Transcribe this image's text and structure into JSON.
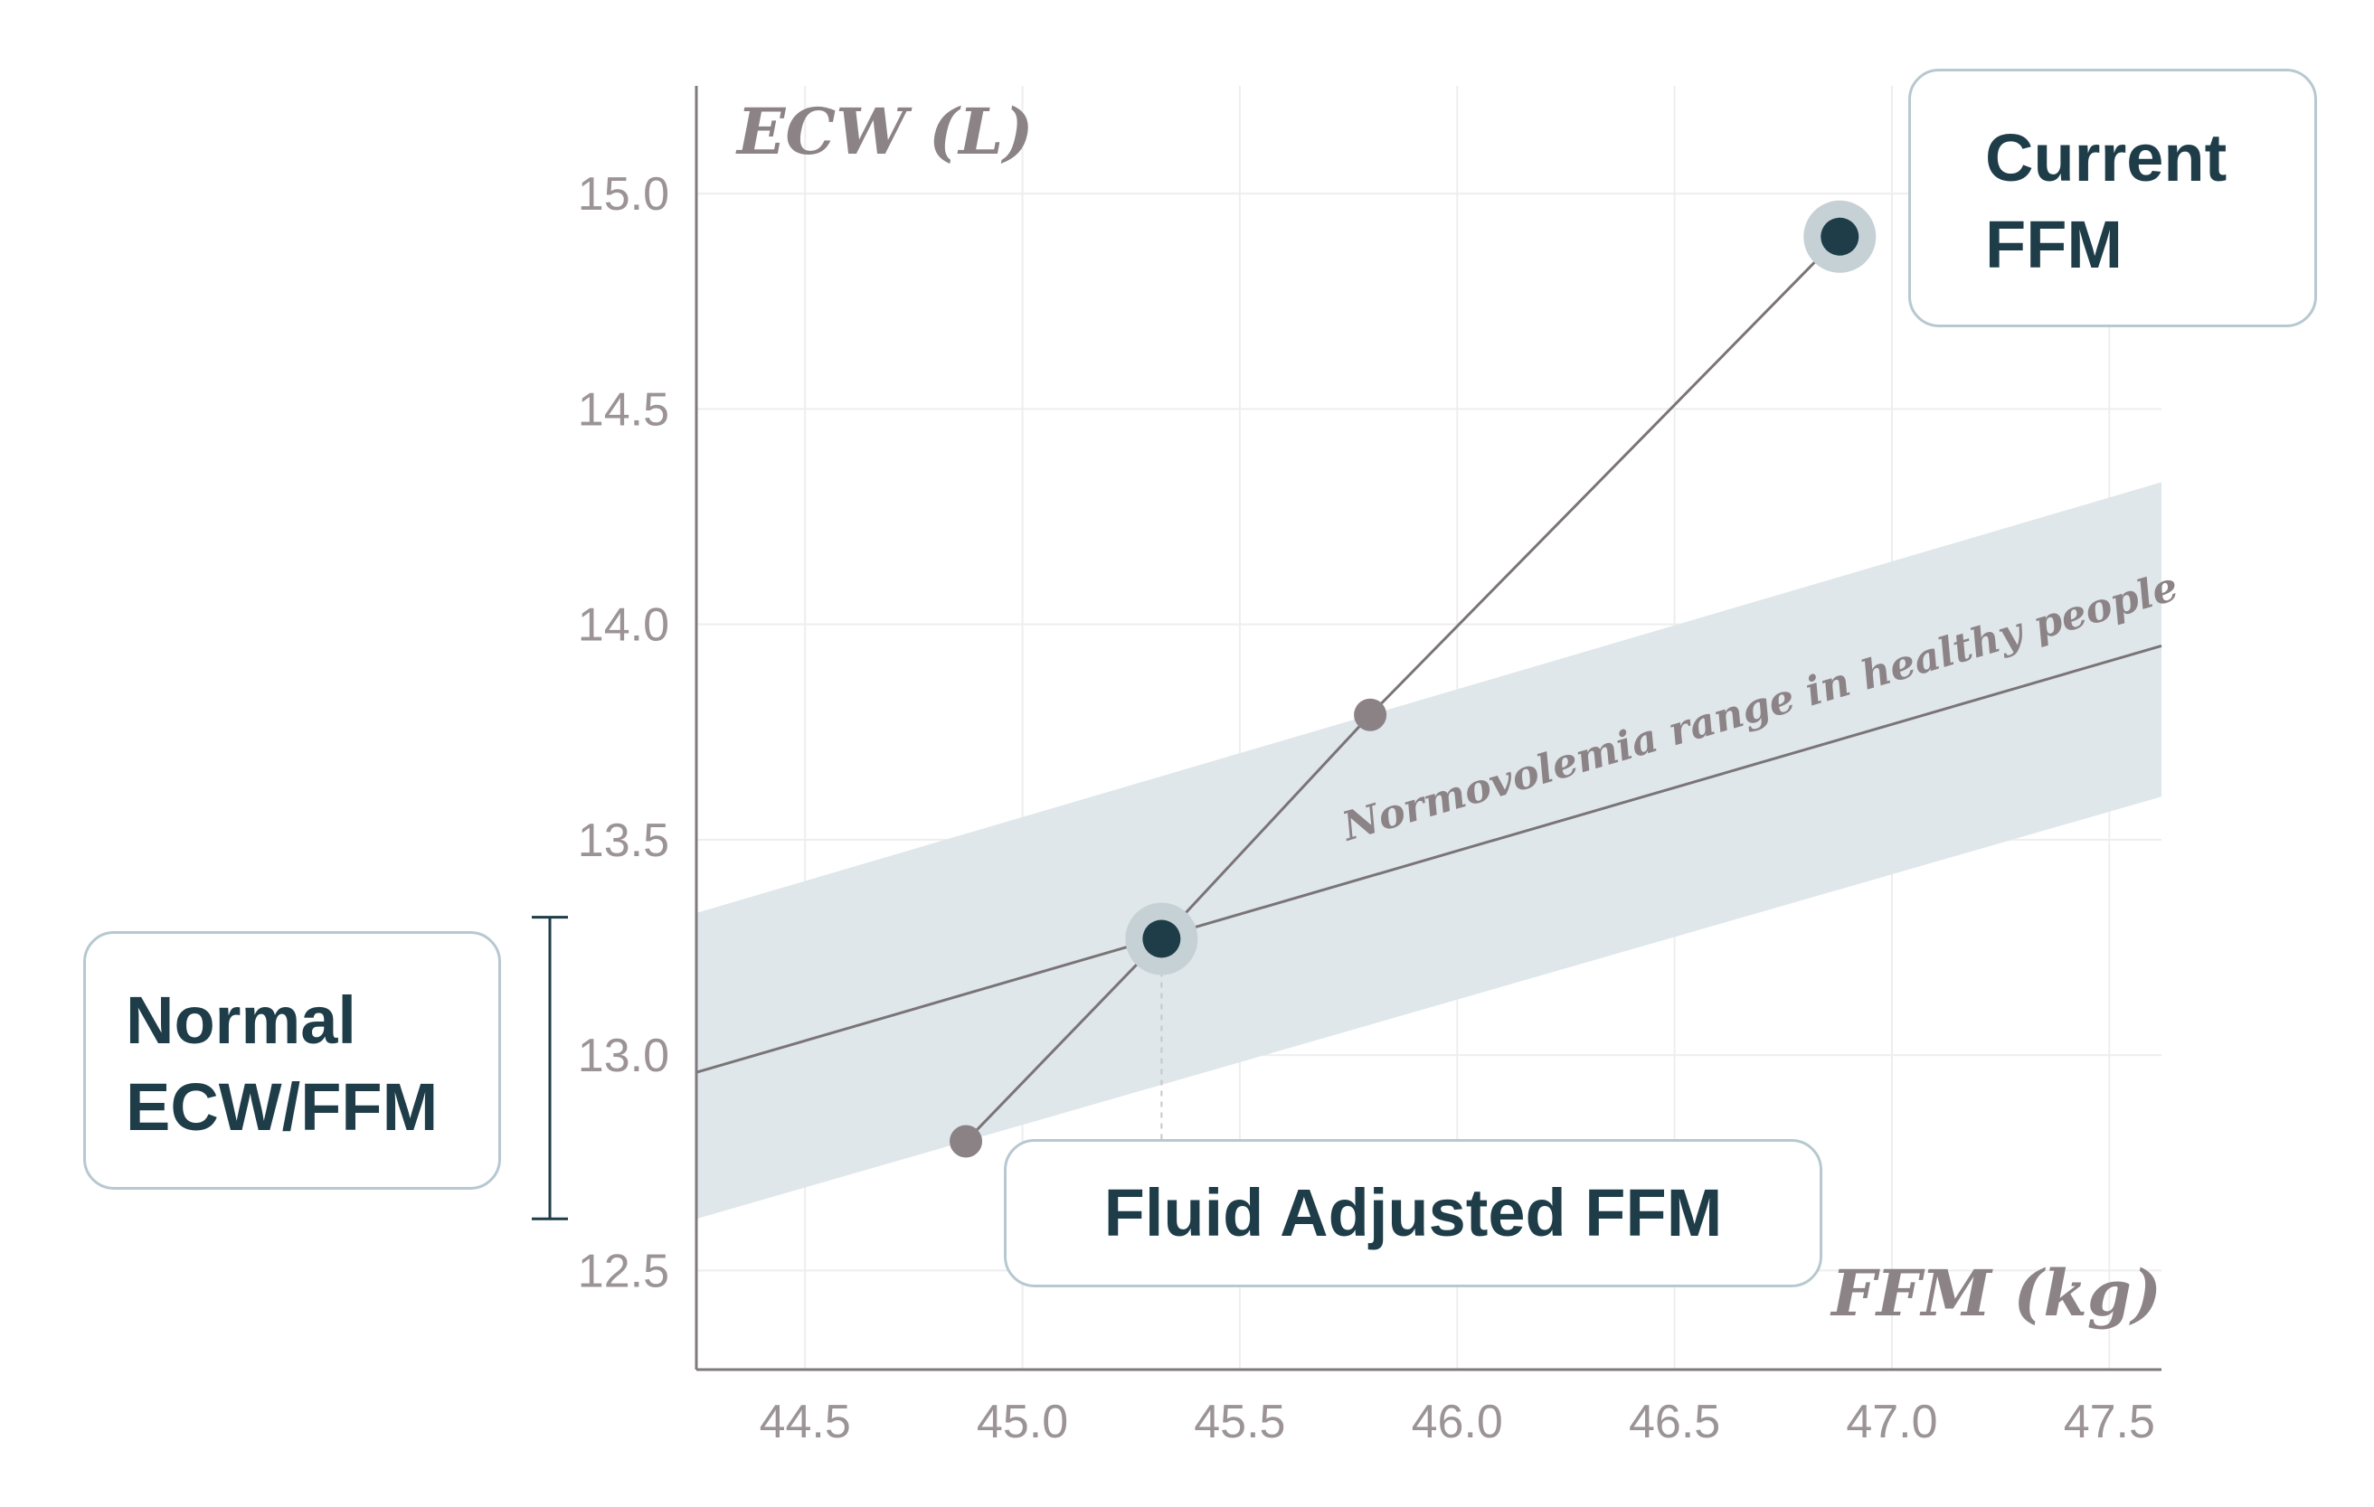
{
  "chart_data": {
    "type": "scatter",
    "xlabel": "FFM (kg)",
    "ylabel": "ECW (L)",
    "xlim": [
      44.25,
      47.62
    ],
    "ylim": [
      12.27,
      15.25
    ],
    "xticks": [
      "44.5",
      "45.0",
      "45.5",
      "46.0",
      "46.5",
      "47.0",
      "47.5"
    ],
    "yticks": [
      "12.5",
      "13.0",
      "13.5",
      "14.0",
      "14.5",
      "15.0"
    ],
    "grid": true,
    "band": {
      "label": "Normovolemia range in healthy people",
      "center_line": [
        [
          44.25,
          12.96
        ],
        [
          47.62,
          13.95
        ]
      ],
      "lower_edge": [
        [
          44.25,
          12.62
        ],
        [
          47.62,
          13.6
        ]
      ],
      "upper_edge": [
        [
          44.25,
          13.33
        ],
        [
          47.62,
          14.33
        ]
      ]
    },
    "path": [
      {
        "x": 44.87,
        "y": 12.8
      },
      {
        "x": 45.32,
        "y": 13.27
      },
      {
        "x": 45.8,
        "y": 13.79
      },
      {
        "x": 46.88,
        "y": 14.9
      }
    ],
    "highlight_points": [
      {
        "x": 45.32,
        "y": 13.27,
        "label": "Fluid Adjusted FFM"
      },
      {
        "x": 46.88,
        "y": 14.9,
        "label": "Current FFM"
      }
    ],
    "normal_range_bracket": {
      "y_from": 12.62,
      "y_to": 13.32,
      "label": "Normal ECW/FFM"
    }
  },
  "callouts": {
    "current": {
      "line1": "Current",
      "line2": "FFM"
    },
    "normal": {
      "line1": "Normal",
      "line2": "ECW/FFM"
    },
    "adjusted": "Fluid Adjusted FFM"
  },
  "colors": {
    "band": "#dfe7eb",
    "line": "#7a7477",
    "highlight": "#1e3d48",
    "highlight_halo": "#c6d1d6",
    "point": "#8a8285",
    "grid": "#eeeeee",
    "axis": "#7f7a7c",
    "callout_border": "#b7c8d1"
  }
}
